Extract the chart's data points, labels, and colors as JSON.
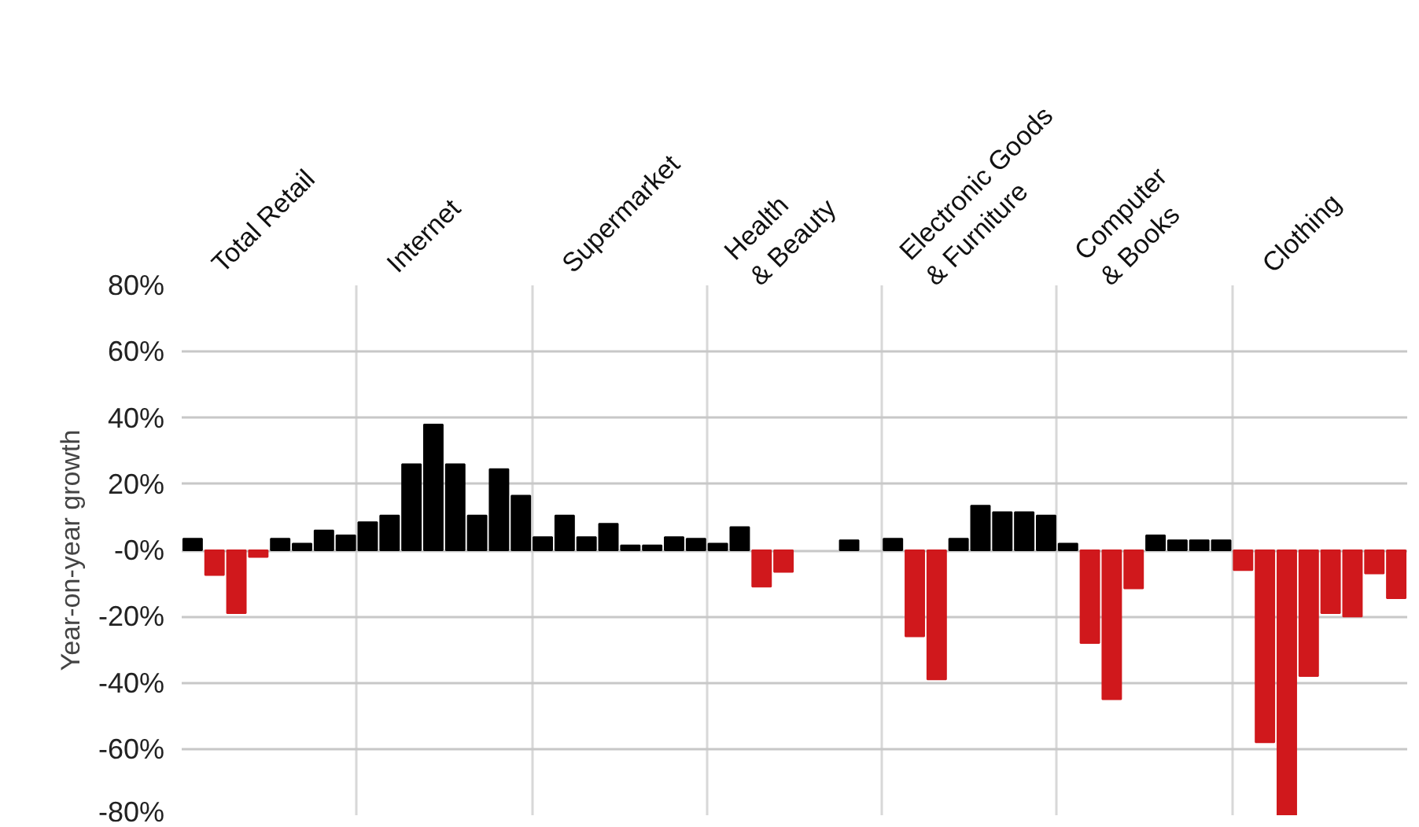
{
  "chart_data": {
    "type": "bar",
    "ylabel": "Year-on-year growth",
    "categories": [
      "Total Retail",
      "Internet",
      "Supermarket",
      "Health\n& Beauty",
      "Electronic Goods\n& Furniture",
      "Computer\n& Books",
      "Clothing"
    ],
    "series": [
      {
        "values": [
          3.5,
          8.5,
          4,
          2,
          3.5,
          2,
          -6
        ],
        "colors": [
          "#000000",
          "#000000",
          "#000000",
          "#000000",
          "#000000",
          "#000000",
          "#d0181c"
        ]
      },
      {
        "values": [
          -7.5,
          10.5,
          10.5,
          7,
          -26,
          -28,
          -58
        ],
        "colors": [
          "#d0181c",
          "#000000",
          "#000000",
          "#000000",
          "#d0181c",
          "#d0181c",
          "#d0181c"
        ]
      },
      {
        "values": [
          -19,
          26,
          4,
          -11,
          -39,
          -45,
          -80
        ],
        "colors": [
          "#d0181c",
          "#000000",
          "#000000",
          "#d0181c",
          "#d0181c",
          "#d0181c",
          "#d0181c"
        ]
      },
      {
        "values": [
          -2,
          38,
          8,
          -6.5,
          3.5,
          -11.5,
          -38
        ],
        "colors": [
          "#d0181c",
          "#000000",
          "#000000",
          "#d0181c",
          "#000000",
          "#d0181c",
          "#d0181c"
        ]
      },
      {
        "values": [
          3.5,
          26,
          1.5,
          null,
          13.5,
          4.5,
          -19
        ],
        "colors": [
          "#000000",
          "#000000",
          "#000000",
          "#000000",
          "#000000",
          "#000000",
          "#d0181c"
        ]
      },
      {
        "values": [
          2,
          10.5,
          1.5,
          null,
          11.5,
          3,
          -20
        ],
        "colors": [
          "#000000",
          "#000000",
          "#000000",
          "#000000",
          "#000000",
          "#000000",
          "#d0181c"
        ]
      },
      {
        "values": [
          6,
          24.5,
          4,
          3,
          11.5,
          3,
          -7
        ],
        "colors": [
          "#000000",
          "#000000",
          "#000000",
          "#000000",
          "#000000",
          "#000000",
          "#d0181c"
        ]
      },
      {
        "values": [
          4.5,
          16.5,
          3.5,
          null,
          10.5,
          3,
          -14.5
        ],
        "colors": [
          "#000000",
          "#000000",
          "#000000",
          "#000000",
          "#000000",
          "#000000",
          "#d0181c"
        ]
      }
    ],
    "ylim": [
      -80,
      80
    ],
    "yticks": [
      {
        "value": -80,
        "label": "-80%"
      },
      {
        "value": -60,
        "label": "-60%"
      },
      {
        "value": -40,
        "label": "-40%"
      },
      {
        "value": -20,
        "label": "-20%"
      },
      {
        "value": 0,
        "label": "-0%"
      },
      {
        "value": 20,
        "label": "20%"
      },
      {
        "value": 40,
        "label": "40%"
      },
      {
        "value": 60,
        "label": "60%"
      },
      {
        "value": 80,
        "label": "80%"
      }
    ],
    "grid": true
  }
}
